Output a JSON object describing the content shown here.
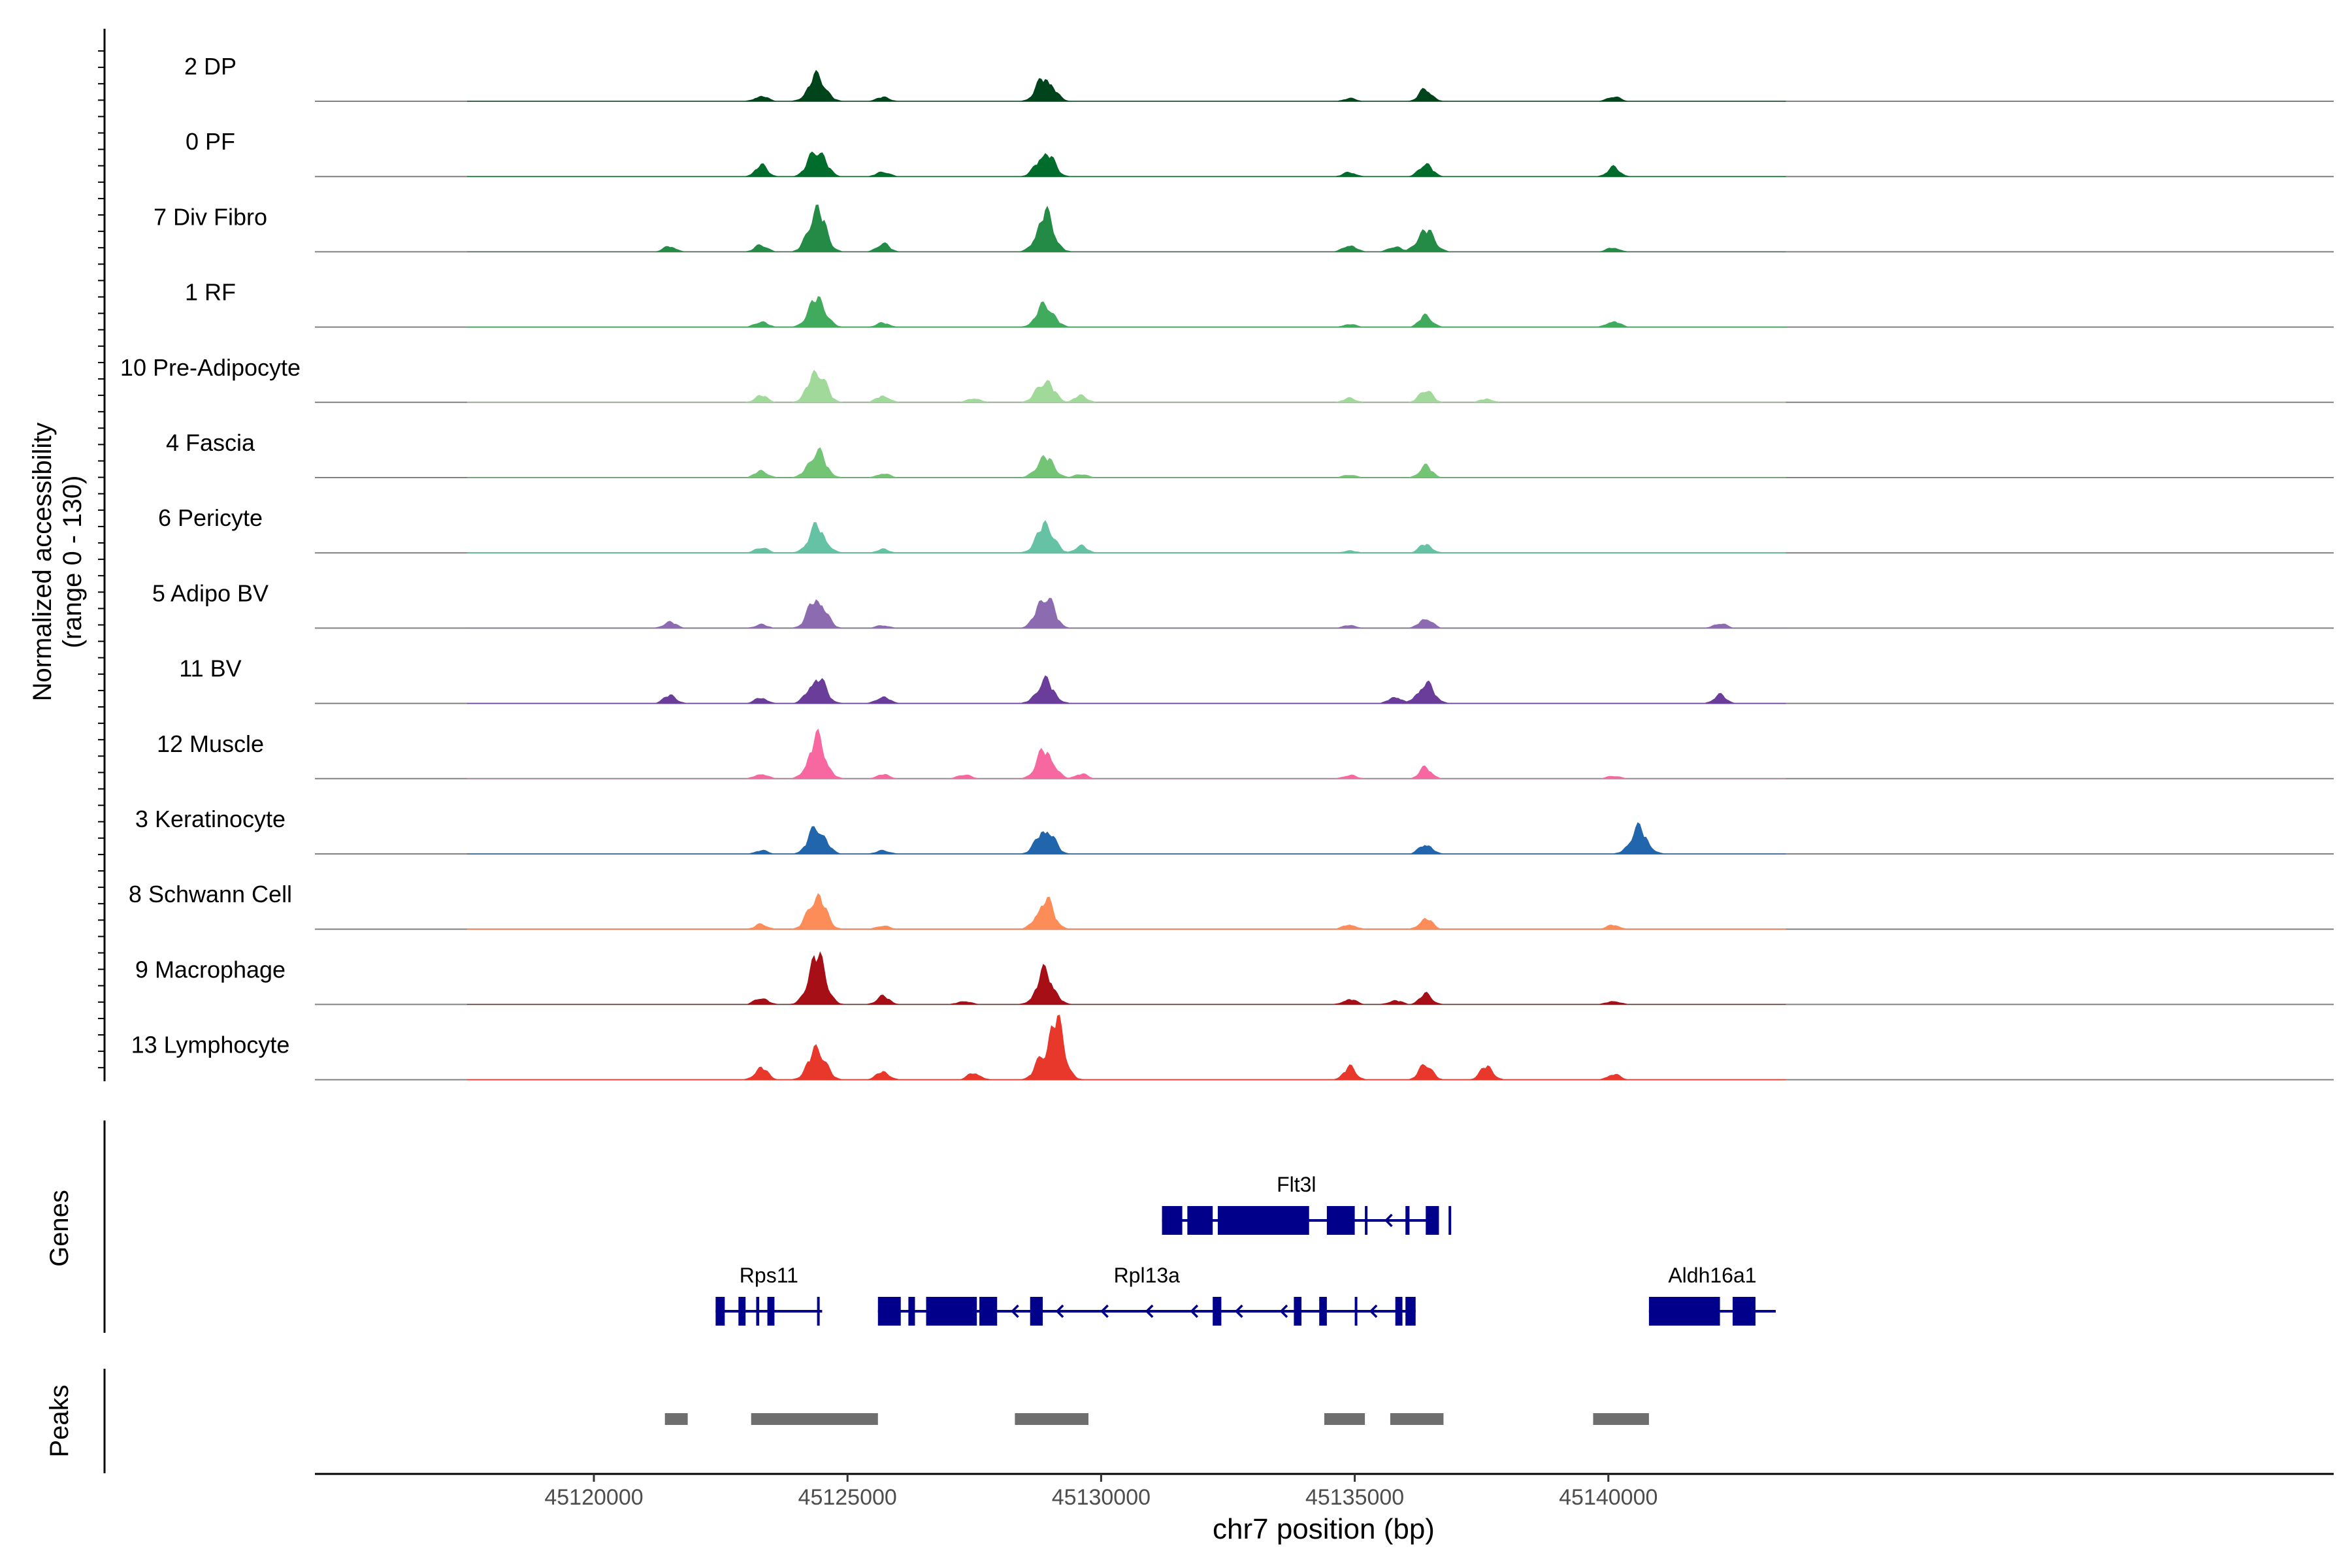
{
  "chart_data": {
    "type": "area",
    "title": "",
    "x_axis": {
      "label": "chr7 position (bp)",
      "range": [
        45114500,
        45154300
      ],
      "ticks": [
        45120000,
        45125000,
        45130000,
        45135000,
        45140000
      ],
      "tick_labels": [
        "45120000",
        "45125000",
        "45130000",
        "45135000",
        "45140000"
      ]
    },
    "y_axis": {
      "label_line1": "Normalized accessibility",
      "label_line2": "(range 0 - 130)",
      "range": [
        0,
        130
      ]
    },
    "series": [
      {
        "name": "2 DP",
        "color": "#00441b",
        "peaks": [
          [
            45124400,
            37
          ],
          [
            45128900,
            36
          ],
          [
            45136400,
            18
          ],
          [
            45123300,
            8
          ],
          [
            45125700,
            6
          ],
          [
            45134900,
            4
          ],
          [
            45140100,
            7
          ]
        ]
      },
      {
        "name": "0 PF",
        "color": "#006d2c",
        "peaks": [
          [
            45124400,
            40
          ],
          [
            45128900,
            36
          ],
          [
            45136400,
            20
          ],
          [
            45123300,
            16
          ],
          [
            45125700,
            7
          ],
          [
            45134900,
            6
          ],
          [
            45140100,
            13
          ]
        ]
      },
      {
        "name": "7 Div Fibro",
        "color": "#238b45",
        "peaks": [
          [
            45124400,
            62
          ],
          [
            45128900,
            55
          ],
          [
            45136400,
            32
          ],
          [
            45121500,
            8
          ],
          [
            45123300,
            10
          ],
          [
            45125700,
            12
          ],
          [
            45134900,
            10
          ],
          [
            45135800,
            8
          ],
          [
            45140100,
            6
          ]
        ]
      },
      {
        "name": "1 RF",
        "color": "#41ab5d",
        "peaks": [
          [
            45124400,
            42
          ],
          [
            45128900,
            33
          ],
          [
            45136400,
            17
          ],
          [
            45123300,
            8
          ],
          [
            45125700,
            6
          ],
          [
            45134900,
            4
          ],
          [
            45140100,
            9
          ]
        ]
      },
      {
        "name": "10 Pre-Adipocyte",
        "color": "#a1d99b",
        "peaks": [
          [
            45124400,
            47
          ],
          [
            45128900,
            32
          ],
          [
            45136400,
            19
          ],
          [
            45123300,
            10
          ],
          [
            45125700,
            10
          ],
          [
            45127500,
            6
          ],
          [
            45129600,
            10
          ],
          [
            45134900,
            6
          ],
          [
            45137600,
            5
          ]
        ]
      },
      {
        "name": "4 Fascia",
        "color": "#74c476",
        "peaks": [
          [
            45124400,
            38
          ],
          [
            45128900,
            30
          ],
          [
            45136400,
            17
          ],
          [
            45123300,
            10
          ],
          [
            45125700,
            6
          ],
          [
            45129600,
            5
          ],
          [
            45134900,
            4
          ]
        ]
      },
      {
        "name": "6 Pericyte",
        "color": "#66c2a4",
        "peaks": [
          [
            45124400,
            38
          ],
          [
            45128900,
            42
          ],
          [
            45136400,
            13
          ],
          [
            45123300,
            8
          ],
          [
            45125700,
            5
          ],
          [
            45129600,
            10
          ],
          [
            45134900,
            3
          ]
        ]
      },
      {
        "name": "5 Adipo BV",
        "color": "#8c6bb1",
        "peaks": [
          [
            45124400,
            45
          ],
          [
            45128900,
            48
          ],
          [
            45136400,
            15
          ],
          [
            45121500,
            9
          ],
          [
            45123300,
            5
          ],
          [
            45125700,
            4
          ],
          [
            45134900,
            4
          ],
          [
            45142200,
            7
          ]
        ]
      },
      {
        "name": "11 BV",
        "color": "#6a3d9a",
        "peaks": [
          [
            45124400,
            38
          ],
          [
            45128900,
            33
          ],
          [
            45136400,
            28
          ],
          [
            45121500,
            12
          ],
          [
            45123300,
            8
          ],
          [
            45125700,
            10
          ],
          [
            45135800,
            10
          ],
          [
            45142200,
            12
          ]
        ]
      },
      {
        "name": "12 Muscle",
        "color": "#f768a1",
        "peaks": [
          [
            45124400,
            58
          ],
          [
            45128900,
            42
          ],
          [
            45136400,
            16
          ],
          [
            45123300,
            7
          ],
          [
            45125700,
            6
          ],
          [
            45127300,
            6
          ],
          [
            45129600,
            7
          ],
          [
            45134900,
            5
          ],
          [
            45140100,
            4
          ]
        ]
      },
      {
        "name": "3 Keratinocyte",
        "color": "#2166ac",
        "peaks": [
          [
            45124400,
            39
          ],
          [
            45128900,
            38
          ],
          [
            45136400,
            15
          ],
          [
            45123300,
            5
          ],
          [
            45125700,
            5
          ],
          [
            45140600,
            37
          ]
        ]
      },
      {
        "name": "8 Schwann Cell",
        "color": "#fc8d59",
        "peaks": [
          [
            45124400,
            50
          ],
          [
            45128900,
            42
          ],
          [
            45136400,
            16
          ],
          [
            45123300,
            7
          ],
          [
            45125700,
            5
          ],
          [
            45134900,
            7
          ],
          [
            45140100,
            6
          ]
        ]
      },
      {
        "name": "9 Macrophage",
        "color": "#a50f15",
        "peaks": [
          [
            45124400,
            72
          ],
          [
            45128900,
            48
          ],
          [
            45136400,
            15
          ],
          [
            45123300,
            10
          ],
          [
            45125700,
            12
          ],
          [
            45127300,
            5
          ],
          [
            45134900,
            8
          ],
          [
            45135800,
            6
          ],
          [
            45140100,
            5
          ]
        ]
      },
      {
        "name": "13 Lymphocyte",
        "color": "#e8372b",
        "peaks": [
          [
            45124400,
            46
          ],
          [
            45129100,
            87
          ],
          [
            45128900,
            40
          ],
          [
            45136400,
            24
          ],
          [
            45123300,
            18
          ],
          [
            45125700,
            12
          ],
          [
            45127500,
            10
          ],
          [
            45134900,
            18
          ],
          [
            45137600,
            20
          ],
          [
            45140100,
            8
          ]
        ]
      }
    ],
    "genes_track": {
      "label": "Genes",
      "color": "#00008b",
      "genes": [
        {
          "name": "Flt3l",
          "row": 1,
          "start": 45131200,
          "end": 45136500,
          "strand": "-",
          "exons": [
            [
              45131200,
              45131600
            ],
            [
              45131700,
              45132200
            ],
            [
              45132300,
              45134100
            ],
            [
              45134450,
              45135000
            ],
            [
              45135200,
              45135240
            ],
            [
              45136000,
              45136080
            ],
            [
              45136400,
              45136660
            ],
            [
              45136850,
              45136880
            ]
          ]
        },
        {
          "name": "Rps11",
          "row": 2,
          "start": 45122400,
          "end": 45124500,
          "strand": "-",
          "exons": [
            [
              45122400,
              45122580
            ],
            [
              45122850,
              45122990
            ],
            [
              45123200,
              45123260
            ],
            [
              45123420,
              45123560
            ],
            [
              45124400,
              45124440
            ]
          ]
        },
        {
          "name": "Rpl13a",
          "row": 2,
          "start": 45125600,
          "end": 45136200,
          "strand": "-",
          "exons": [
            [
              45125600,
              45126050
            ],
            [
              45126200,
              45126330
            ],
            [
              45126550,
              45127550
            ],
            [
              45127600,
              45127950
            ],
            [
              45128600,
              45128850
            ],
            [
              45132200,
              45132370
            ],
            [
              45133800,
              45133950
            ],
            [
              45134300,
              45134450
            ],
            [
              45135000,
              45135040
            ],
            [
              45135800,
              45135940
            ],
            [
              45136000,
              45136200
            ]
          ]
        },
        {
          "name": "Aldh16a1",
          "row": 2,
          "start": 45140800,
          "end": 45143300,
          "strand": "+",
          "exons": [
            [
              45140800,
              45142200
            ],
            [
              45142450,
              45142900
            ]
          ]
        }
      ]
    },
    "peaks_track": {
      "label": "Peaks",
      "color": "#6e6e6e",
      "regions": [
        [
          45121400,
          45121850
        ],
        [
          45123100,
          45125600
        ],
        [
          45128300,
          45129750
        ],
        [
          45134400,
          45135200
        ],
        [
          45135700,
          45136750
        ],
        [
          45139700,
          45140800
        ]
      ]
    }
  }
}
